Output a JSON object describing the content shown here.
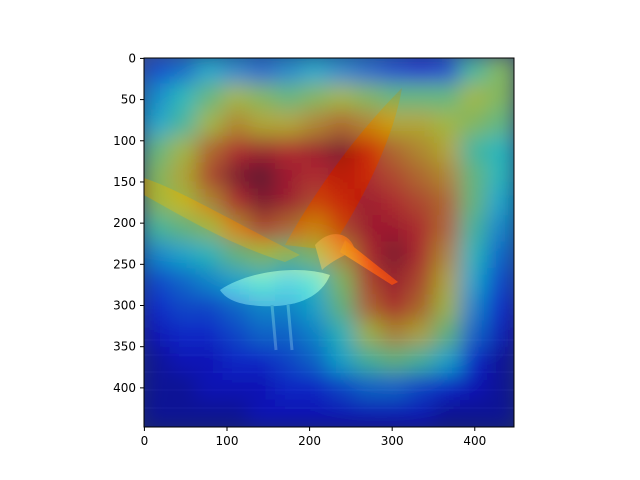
{
  "chart_data": {
    "type": "heatmap",
    "image_width": 448,
    "image_height": 448,
    "xlim": [
      -0.5,
      447.5
    ],
    "ylim": [
      447.5,
      -0.5
    ],
    "x_ticks": [
      0,
      100,
      200,
      300,
      400
    ],
    "x_tick_labels": [
      "0",
      "100",
      "200",
      "300",
      "400"
    ],
    "y_ticks": [
      0,
      50,
      100,
      150,
      200,
      250,
      300,
      350,
      400
    ],
    "y_tick_labels": [
      "0",
      "50",
      "100",
      "150",
      "200",
      "250",
      "300",
      "350",
      "400"
    ],
    "colormap": "jet",
    "overlay_alpha": 0.5,
    "background_scene": "pelican-in-flight-over-water",
    "colors": {
      "water": "#2a3f78",
      "pelican_wing": "#7a3d1e",
      "pelican_body": "#c9c4b8",
      "jet_low": "#000080",
      "jet_high": "#800000"
    },
    "heatmap_grid": [
      [
        0.2,
        0.25,
        0.35,
        0.3,
        0.25,
        0.3,
        0.35,
        0.3,
        0.25,
        0.2,
        0.15,
        0.2,
        0.45,
        0.55
      ],
      [
        0.3,
        0.4,
        0.5,
        0.6,
        0.55,
        0.5,
        0.55,
        0.6,
        0.55,
        0.5,
        0.5,
        0.5,
        0.6,
        0.55
      ],
      [
        0.35,
        0.45,
        0.6,
        0.7,
        0.65,
        0.65,
        0.7,
        0.75,
        0.7,
        0.65,
        0.65,
        0.6,
        0.55,
        0.5
      ],
      [
        0.5,
        0.6,
        0.75,
        0.85,
        0.9,
        0.85,
        0.9,
        0.95,
        0.85,
        0.75,
        0.7,
        0.65,
        0.45,
        0.4
      ],
      [
        0.55,
        0.65,
        0.8,
        0.95,
        1.0,
        0.9,
        0.85,
        0.9,
        0.85,
        0.8,
        0.75,
        0.7,
        0.5,
        0.4
      ],
      [
        0.55,
        0.6,
        0.7,
        0.85,
        0.95,
        0.9,
        0.8,
        0.85,
        0.9,
        0.85,
        0.8,
        0.75,
        0.5,
        0.35
      ],
      [
        0.45,
        0.5,
        0.55,
        0.7,
        0.8,
        0.75,
        0.7,
        0.8,
        0.9,
        0.9,
        0.85,
        0.75,
        0.45,
        0.3
      ],
      [
        0.3,
        0.35,
        0.4,
        0.5,
        0.55,
        0.5,
        0.55,
        0.7,
        0.85,
        0.95,
        0.85,
        0.7,
        0.4,
        0.25
      ],
      [
        0.2,
        0.25,
        0.3,
        0.35,
        0.4,
        0.35,
        0.4,
        0.55,
        0.8,
        0.9,
        0.8,
        0.65,
        0.35,
        0.2
      ],
      [
        0.15,
        0.2,
        0.2,
        0.25,
        0.3,
        0.3,
        0.35,
        0.5,
        0.75,
        0.85,
        0.75,
        0.6,
        0.3,
        0.15
      ],
      [
        0.1,
        0.15,
        0.15,
        0.2,
        0.25,
        0.25,
        0.3,
        0.4,
        0.6,
        0.7,
        0.65,
        0.5,
        0.25,
        0.1
      ],
      [
        0.05,
        0.1,
        0.1,
        0.15,
        0.15,
        0.2,
        0.25,
        0.35,
        0.45,
        0.5,
        0.45,
        0.35,
        0.15,
        0.05
      ],
      [
        0.05,
        0.05,
        0.1,
        0.1,
        0.1,
        0.15,
        0.15,
        0.2,
        0.25,
        0.25,
        0.2,
        0.15,
        0.1,
        0.05
      ],
      [
        0.05,
        0.05,
        0.05,
        0.05,
        0.1,
        0.1,
        0.1,
        0.1,
        0.1,
        0.1,
        0.1,
        0.05,
        0.05,
        0.05
      ]
    ]
  }
}
